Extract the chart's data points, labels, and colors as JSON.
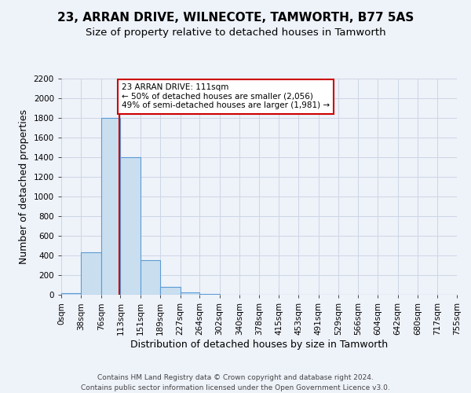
{
  "title": "23, ARRAN DRIVE, WILNECOTE, TAMWORTH, B77 5AS",
  "subtitle": "Size of property relative to detached houses in Tamworth",
  "xlabel": "Distribution of detached houses by size in Tamworth",
  "ylabel": "Number of detached properties",
  "bar_edges": [
    0,
    38,
    76,
    113,
    151,
    189,
    227,
    264,
    302,
    340,
    378,
    415,
    453,
    491,
    529,
    566,
    604,
    642,
    680,
    717,
    755
  ],
  "bar_heights": [
    20,
    430,
    1800,
    1400,
    350,
    80,
    25,
    5,
    0,
    0,
    0,
    0,
    0,
    0,
    0,
    0,
    0,
    0,
    0,
    0
  ],
  "bar_color": "#c9dff0",
  "bar_edge_color": "#5b9bd5",
  "property_line_x": 111,
  "annotation_title": "23 ARRAN DRIVE: 111sqm",
  "annotation_line1": "← 50% of detached houses are smaller (2,056)",
  "annotation_line2": "49% of semi-detached houses are larger (1,981) →",
  "annotation_box_color": "#ffffff",
  "annotation_box_edge": "#cc0000",
  "vline_color": "#cc0000",
  "ylim": [
    0,
    2200
  ],
  "yticks": [
    0,
    200,
    400,
    600,
    800,
    1000,
    1200,
    1400,
    1600,
    1800,
    2000,
    2200
  ],
  "xtick_labels": [
    "0sqm",
    "38sqm",
    "76sqm",
    "113sqm",
    "151sqm",
    "189sqm",
    "227sqm",
    "264sqm",
    "302sqm",
    "340sqm",
    "378sqm",
    "415sqm",
    "453sqm",
    "491sqm",
    "529sqm",
    "566sqm",
    "604sqm",
    "642sqm",
    "680sqm",
    "717sqm",
    "755sqm"
  ],
  "grid_color": "#ced6e5",
  "bg_color": "#eef2f9",
  "footer_line1": "Contains HM Land Registry data © Crown copyright and database right 2024.",
  "footer_line2": "Contains public sector information licensed under the Open Government Licence v3.0.",
  "title_fontsize": 11,
  "subtitle_fontsize": 9.5,
  "axis_label_fontsize": 9,
  "tick_fontsize": 7.5,
  "footer_fontsize": 6.5
}
